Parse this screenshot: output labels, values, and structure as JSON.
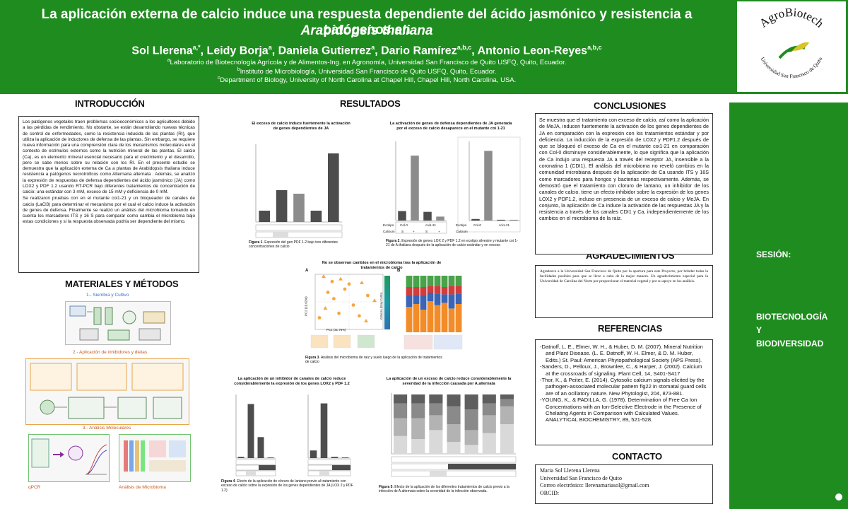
{
  "header": {
    "title_line1": "La aplicación externa de calcio induce una respuesta dependiente del ácido jasmónico y resistencia a patógenos en",
    "title_line2": "Arabidopsis thaliana",
    "authors": [
      {
        "name": "Sol Llerena",
        "sup": "a,*"
      },
      {
        "name": "Leidy Borja",
        "sup": "a"
      },
      {
        "name": "Daniela Gutierrez",
        "sup": "a"
      },
      {
        "name": "Dario Ramírez",
        "sup": "a,b,c"
      },
      {
        "name": "Antonio Leon-Reyes",
        "sup": "a,b,c"
      }
    ],
    "affiliations": [
      {
        "sup": "a",
        "text": "Laboratorio de Biotecnología Agrícola y de Alimentos-Ing. en Agronomía, Universidad San Francisco de Quito USFQ, Quito, Ecuador."
      },
      {
        "sup": "b",
        "text": "Instituto de Microbiología, Universidad San Francisco de Quito USFQ, Quito, Ecuador."
      },
      {
        "sup": "c",
        "text": "Department of Biology, University of North Carolina at Chapel Hill, Chapel Hill, North Carolina, USA."
      }
    ],
    "logo": {
      "top_text": "AgroBiotech",
      "arc_text": "Universidad San Francisco de Quito",
      "icon": "seedling-logo-icon"
    }
  },
  "sidebar": {
    "session_label": "SESIÓN:",
    "session_value": [
      "BIOTECNOLOGÍA",
      "Y",
      "BIODIVERSIDAD"
    ]
  },
  "sections": {
    "intro": "INTRODUCCIÓN",
    "results": "RESULTADOS",
    "conclusions": "CONCLUSIONES",
    "methods": "MATERIALES Y MÉTODOS",
    "ack": "AGRADECIMIENTOS",
    "refs": "REFERENCIAS",
    "contact": "CONTACTO"
  },
  "intro_paragraphs": [
    "Los patógenos vegetales traen problemas socioeconómicos a los agricultores debido a las pérdidas de rendimiento. No obstante, se están desarrollando nuevas técnicas de control de enfermedades, como la resistencia inducida de las plantas (RI), que utiliza la aplicación de inductores de defensa de las plantas. Sin embargo, se requiere nueva información para una comprensión clara de los mecanismos moleculares en el contexto de estímulos externos como la nutrición mineral de las plantas. El calcio (Ca), es un elemento mineral esencial necesario para el crecimiento y el desarrollo, pero se sabe menos sobre su relación con los RI. En el presente estudio se demuestra que la aplicación externa de Ca a plantas de Arabidopsis thaliana induce resistencia a patógenos necrotróficos como Alternaria alternata . Además, se analizó la expresión de respuestas de defensa dependientes del ácido jasmónico (JA) como LOX2 y PDF 1.2 usando RT-PCR bajo diferentes tratamientos de concentración de calcio: una estándar con 3 mM, exceso de 15 mM y deficiencia de 0 mM.",
    "Se realizaron pruebas con en el mutante coi1-21 y un bloqueador de canales de calcio (LaCl3) para determinar el mecanismo por el cual el calcio induce la activación de genes de defensa. Finalmente se realizó un análisis del microbioma tomando en cuenta los marcadores ITS y 16 S para comparar como cambia el microbioma bajo estas condiciones y si la respuesta observada podría ser dependiente del mismo."
  ],
  "methods": {
    "step1": "1.- Siembra y Cultivo",
    "step2": "2.- Aplicación de inhibidores y dietas",
    "step3": "3.- Análisis Moleculares",
    "qpcr_label": "qPCR",
    "microbiome_label": "Análisis de Microbioma"
  },
  "fig1": {
    "title": "El exceso de calcio induce fuertemente la activación de genes dependientes de JA",
    "caption_bold": "Figura 1",
    "caption": ". Expresión del gen PDF 1.2 bajo tres diferentes concentraciones de calcio"
  },
  "fig2": {
    "title": "La activación de genes de defensa dependientes de JA generada por el exceso de calcio desaparece en el mutante coi 1-21",
    "caption_bold": "Figura 2",
    "caption": ". Expresión de genes LOX 2 y PDF 1.2 en ecotipo silvestre y mutante coi 1-21 de A.thaliana después de la aplicación de calcio estándar y en exceso",
    "left_groups": [
      "Col-0",
      "coi1-21"
    ],
    "right_groups": [
      "Col-0",
      "coi1-21"
    ],
    "row_ecotipo": "Ecotipo",
    "row_calcium": "Calcium",
    "calcium_levels": [
      "S",
      "+",
      "S",
      "+"
    ]
  },
  "fig3": {
    "title": "No se observan cambios en el microbioma tras la aplicación de tratamientos de calcio",
    "caption_bold": "Figura 3",
    "caption": ". Análisis del microbioma de raíz y suelo luego de la aplicación de tratamientos de calcio",
    "panel_a": "A",
    "panel_b": "B",
    "pc1": "PC1 (21.76%)",
    "pc2": "PC2 (16.62%)",
    "colorbar_label": "Varianza (Bray-Curtis)"
  },
  "fig4": {
    "title": "La aplicación de un inhibidor de canales de calcio reduce considerablemente la expresión de los genes LOX2 y PDF 1.2",
    "caption_bold": "Figura 4",
    "caption": ". Efecto de la aplicación de cloruro de lantano previo al tratamiento con exceso de calcio sobre la expresión de los genes dependientes de JA (LOX 2 y PDF 1.2)"
  },
  "fig5": {
    "title": "La aplicación de un exceso de calcio reduce considerablemente la severidad de la infección causada por A.alternata",
    "caption_bold": "Figura 5",
    "caption": ". Efecto de la aplicación de los diferentes tratamientos de calcio previo a la infección de A.alternata sobre la severidad de la infección observada."
  },
  "conclusions": "Se muestra que el tratamiento con exceso de calcio, así como la aplicación de MeJA, inducen fuertemente la activación de los genes dependientes de JA en comparación con la expresión con los tratamientos estándar y por deficiencia. La inducción de la expresión de LOX2 y PDF1.2 después de que se bloqueó el exceso de Ca en el mutante coi1-21 en comparación con Col-0 disminuye considerablemente, lo que significa que la aplicación de Ca indujo una respuesta JA a través del receptor JA, insensible a la coronatina 1 (CDI1). El análisis del microbioma no reveló cambios en la comunidad microbiana después de la aplicación de Ca usando ITS y 16S como marcadores para hongos y bacterias respectivamente. Además, se demostró que el tratamiento con cloruro de lantano, un inhibidor de los canales de calcio, tiene un efecto inhibidor sobre la expresión de los genes LOX2 y PDF1.2, incluso en presencia de un exceso de calcio y MeJA. En conjunto, la aplicación de Ca induce la activación de las respuestas JA y la resistencia a través de los canales CDI1 y Ca, independientemente de los cambios en el microbioma de la raíz.",
  "acknowledgements": "Agradezco a la Universidad San Francisco de Quito por la apertura para este Proyecto, por brindar todas la facilidades posibles para que se lleve a cabo de la mejor manera. Un agradecimiento especial para la Universidad de Carolina del Norte por proporcionar el material vegetal y por su apoyo en los análisis.",
  "references": [
    "-Datnoff, L. E., Elmer, W. H., & Huber, D. M. (2007). Mineral Nutrition and Plant Disease. (L. E. Datnoff, W. H. Elmer, & D. M. Huber, Edits.) St. Paul: American Phytopathological Society (APS Press).",
    "-Sanders, D., Pelloux, J., Brownlee, C., & Harper, J. (2002). Calcium at the crossroads of signaling. Plant Cell, 14, S401-S417",
    "-Thor, K., & Peiter, E. (2014). Cytosolic calcium signals elicited by the pathogen-associated molecular pattern flg22 in stomatal guard cells are of an ocillatory nature. New Phytologist, 204, 873-881.",
    "-YOUNG, K., & PADILLA, G. (1978). Determination of Free Ca Ion Concentrations with an Ion-Selective Electrode in the Presence of Chelating Agents in Comparison with Calculated Values. ANALYTICAL BIOCHEMISTRY, 89, 521-528."
  ],
  "contact": {
    "name": "Maria Sol Llerena Llerena",
    "org": "Universidad San Francisco de Quito",
    "email_label": "Correo electrónico: ",
    "email": "llerenamariasol@gmail.com",
    "orcid_label": "ORCID:"
  },
  "colors": {
    "brand_green": "#1f8c1f",
    "bar_dark": "#4d4d4d",
    "bar_mid": "#8c8c8c",
    "scatter": "#f4a742"
  },
  "chart_data": [
    {
      "id": "fig1",
      "type": "bar",
      "categories": [
        "1",
        "2",
        "3",
        "4",
        "5"
      ],
      "values": [
        0.16,
        0.45,
        0.4,
        0.16,
        0.97
      ],
      "ylim": [
        0,
        1.1
      ]
    },
    {
      "id": "fig2a",
      "type": "bar",
      "categories": [
        "Col-0 S",
        "Col-0 +",
        "coi1-21 S",
        "coi1-21 +"
      ],
      "values": [
        0.12,
        0.82,
        0.11,
        0.05
      ],
      "ylim": [
        0,
        1
      ]
    },
    {
      "id": "fig2b",
      "type": "bar",
      "categories": [
        "Col-0 S",
        "Col-0 +",
        "coi1-21 S",
        "coi1-21 +"
      ],
      "values": [
        0.02,
        0.88,
        0.01,
        0.01
      ],
      "ylim": [
        0,
        1
      ]
    },
    {
      "id": "fig4a",
      "type": "bar",
      "categories": [
        "1",
        "2",
        "3",
        "4"
      ],
      "values": [
        0.02,
        0.85,
        0.33,
        0.01
      ],
      "ylim": [
        0,
        1
      ]
    },
    {
      "id": "fig4b",
      "type": "bar",
      "categories": [
        "1",
        "2",
        "3",
        "4"
      ],
      "values": [
        0.12,
        0.86,
        0.02,
        0.01
      ],
      "ylim": [
        0,
        1
      ]
    },
    {
      "id": "fig5",
      "type": "bar",
      "stacked": true,
      "categories": [
        "1",
        "2",
        "3",
        "4",
        "5",
        "6",
        "7"
      ],
      "series": [
        {
          "values": [
            0.3,
            0.25,
            0.4,
            0.2,
            0.15,
            0.35,
            0.5
          ]
        },
        {
          "values": [
            0.3,
            0.35,
            0.25,
            0.3,
            0.25,
            0.3,
            0.3
          ]
        },
        {
          "values": [
            0.25,
            0.25,
            0.2,
            0.3,
            0.35,
            0.2,
            0.12
          ]
        },
        {
          "values": [
            0.15,
            0.15,
            0.15,
            0.2,
            0.25,
            0.15,
            0.08
          ]
        }
      ],
      "ylim": [
        0,
        1
      ]
    },
    {
      "id": "fig3a",
      "type": "scatter",
      "points": [
        [
          -0.3,
          0.4
        ],
        [
          -0.2,
          0.32
        ],
        [
          -0.25,
          0.15
        ],
        [
          -0.1,
          0.36
        ],
        [
          -0.05,
          0.2
        ],
        [
          -0.18,
          0.05
        ],
        [
          -0.28,
          -0.1
        ],
        [
          -0.12,
          -0.18
        ],
        [
          0.0,
          0.28
        ],
        [
          0.15,
          0.3
        ],
        [
          0.22,
          0.1
        ],
        [
          0.05,
          -0.05
        ],
        [
          0.3,
          0.02
        ],
        [
          0.12,
          -0.22
        ],
        [
          -0.35,
          -0.25
        ],
        [
          0.2,
          -0.3
        ]
      ]
    },
    {
      "id": "fig3b",
      "type": "bar",
      "stacked": true,
      "categories": [
        "1",
        "2",
        "3",
        "4",
        "5",
        "6",
        "7",
        "8"
      ],
      "series": [
        {
          "values": [
            0.45,
            0.5,
            0.4,
            0.55,
            0.48,
            0.52,
            0.42,
            0.5
          ]
        },
        {
          "values": [
            0.2,
            0.15,
            0.25,
            0.15,
            0.2,
            0.15,
            0.25,
            0.18
          ]
        },
        {
          "values": [
            0.15,
            0.15,
            0.15,
            0.12,
            0.14,
            0.13,
            0.15,
            0.14
          ]
        },
        {
          "values": [
            0.2,
            0.2,
            0.2,
            0.18,
            0.18,
            0.2,
            0.18,
            0.18
          ]
        }
      ],
      "ylim": [
        0,
        1
      ]
    }
  ]
}
